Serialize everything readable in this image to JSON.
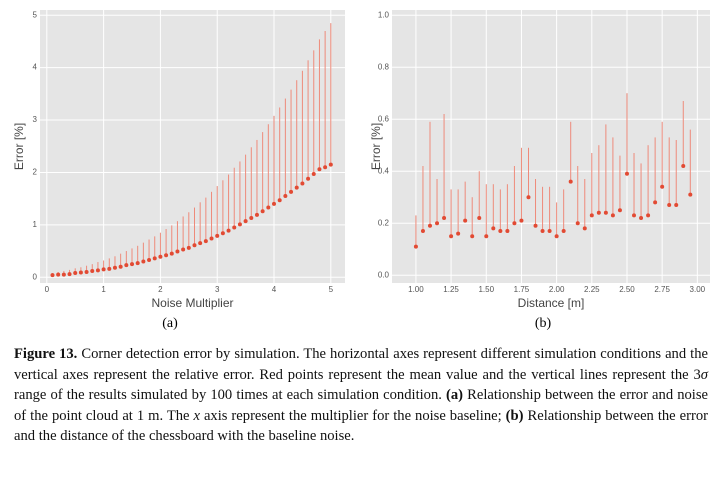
{
  "chart_data": [
    {
      "type": "errorbar",
      "xlabel": "Noise Multiplier",
      "ylabel": "Error [%]",
      "color": "#e24a33",
      "line_color": "#ee8a7a",
      "grid": true,
      "x": [
        0.1,
        0.2,
        0.3,
        0.4,
        0.5,
        0.6,
        0.7,
        0.8,
        0.9,
        1.0,
        1.1,
        1.2,
        1.3,
        1.4,
        1.5,
        1.6,
        1.7,
        1.8,
        1.9,
        2.0,
        2.1,
        2.2,
        2.3,
        2.4,
        2.5,
        2.6,
        2.7,
        2.8,
        2.9,
        3.0,
        3.1,
        3.2,
        3.3,
        3.4,
        3.5,
        3.6,
        3.7,
        3.8,
        3.9,
        4.0,
        4.1,
        4.2,
        4.3,
        4.4,
        4.5,
        4.6,
        4.7,
        4.8,
        4.9,
        5.0
      ],
      "values": [
        0.04,
        0.05,
        0.05,
        0.06,
        0.08,
        0.09,
        0.1,
        0.12,
        0.13,
        0.15,
        0.16,
        0.18,
        0.2,
        0.23,
        0.25,
        0.27,
        0.3,
        0.33,
        0.36,
        0.39,
        0.42,
        0.45,
        0.49,
        0.53,
        0.56,
        0.61,
        0.65,
        0.69,
        0.74,
        0.79,
        0.84,
        0.89,
        0.95,
        1.01,
        1.07,
        1.13,
        1.19,
        1.26,
        1.33,
        1.4,
        1.47,
        1.55,
        1.63,
        1.71,
        1.79,
        1.88,
        1.97,
        2.06,
        2.1,
        2.15
      ],
      "upper": [
        0.08,
        0.1,
        0.12,
        0.14,
        0.17,
        0.19,
        0.22,
        0.25,
        0.29,
        0.32,
        0.36,
        0.4,
        0.45,
        0.5,
        0.55,
        0.6,
        0.66,
        0.72,
        0.78,
        0.85,
        0.92,
        0.99,
        1.07,
        1.16,
        1.24,
        1.33,
        1.43,
        1.52,
        1.63,
        1.74,
        1.85,
        1.96,
        2.09,
        2.21,
        2.34,
        2.48,
        2.62,
        2.77,
        2.92,
        3.08,
        3.24,
        3.41,
        3.58,
        3.76,
        3.94,
        4.14,
        4.33,
        4.54,
        4.7,
        4.85
      ],
      "xlim": [
        -0.12,
        5.25
      ],
      "ylim": [
        -0.11,
        5.1
      ],
      "xticks": [
        0,
        1,
        2,
        3,
        4,
        5
      ],
      "yticks": [
        0,
        1,
        2,
        3,
        4,
        5
      ]
    },
    {
      "type": "errorbar",
      "xlabel": "Distance [m]",
      "ylabel": "Error [%]",
      "color": "#e24a33",
      "line_color": "#ee8a7a",
      "grid": true,
      "x": [
        1.0,
        1.05,
        1.1,
        1.15,
        1.2,
        1.25,
        1.3,
        1.35,
        1.4,
        1.45,
        1.5,
        1.55,
        1.6,
        1.65,
        1.7,
        1.75,
        1.8,
        1.85,
        1.9,
        1.95,
        2.0,
        2.05,
        2.1,
        2.15,
        2.2,
        2.25,
        2.3,
        2.35,
        2.4,
        2.45,
        2.5,
        2.55,
        2.6,
        2.65,
        2.7,
        2.75,
        2.8,
        2.85,
        2.9,
        2.95
      ],
      "values": [
        0.11,
        0.17,
        0.19,
        0.2,
        0.22,
        0.15,
        0.16,
        0.21,
        0.15,
        0.22,
        0.15,
        0.18,
        0.17,
        0.17,
        0.2,
        0.21,
        0.3,
        0.19,
        0.17,
        0.17,
        0.15,
        0.17,
        0.36,
        0.2,
        0.18,
        0.23,
        0.24,
        0.24,
        0.23,
        0.25,
        0.39,
        0.23,
        0.22,
        0.23,
        0.28,
        0.34,
        0.27,
        0.27,
        0.42,
        0.31
      ],
      "upper": [
        0.23,
        0.42,
        0.59,
        0.37,
        0.62,
        0.33,
        0.33,
        0.36,
        0.3,
        0.4,
        0.35,
        0.35,
        0.33,
        0.35,
        0.42,
        0.49,
        0.49,
        0.37,
        0.34,
        0.34,
        0.28,
        0.33,
        0.59,
        0.42,
        0.37,
        0.47,
        0.5,
        0.58,
        0.53,
        0.46,
        0.7,
        0.47,
        0.43,
        0.5,
        0.53,
        0.59,
        0.53,
        0.52,
        0.67,
        0.56
      ],
      "xlim": [
        0.83,
        3.09
      ],
      "ylim": [
        -0.03,
        1.02
      ],
      "xticks": [
        {
          "value": 1,
          "label": "1.00"
        },
        1.25,
        {
          "value": 1.5,
          "label": "1.50"
        },
        1.75,
        {
          "value": 2,
          "label": "2.00"
        },
        2.25,
        {
          "value": 2.5,
          "label": "2.50"
        },
        2.75,
        {
          "value": 3,
          "label": "3.00"
        }
      ],
      "yticks": [
        {
          "value": 0,
          "label": "0.0"
        },
        0.2,
        0.4,
        0.6,
        0.8,
        {
          "value": 1,
          "label": "1.0"
        }
      ]
    }
  ],
  "panels": [
    "(a)",
    "(b)"
  ],
  "caption": [
    {
      "text": "Figure 13.",
      "style": "bold"
    },
    {
      "text": " Corner detection error by simulation. The horizontal axes represent different simulation conditions and the vertical axes represent the relative error. Red points represent the mean value and the vertical lines represent the 3",
      "style": "normal"
    },
    {
      "text": "σ",
      "style": "italic"
    },
    {
      "text": " range of the results simulated by 100 times at each simulation condition. ",
      "style": "normal"
    },
    {
      "text": "(a)",
      "style": "bold"
    },
    {
      "text": " Relationship between the error and noise of the point cloud at 1 m. The ",
      "style": "normal"
    },
    {
      "text": "x",
      "style": "italic"
    },
    {
      "text": " axis represent the multiplier for the noise baseline; ",
      "style": "normal"
    },
    {
      "text": "(b)",
      "style": "bold"
    },
    {
      "text": " Relationship between the error and the distance of the chessboard with the baseline noise.",
      "style": "normal"
    }
  ]
}
